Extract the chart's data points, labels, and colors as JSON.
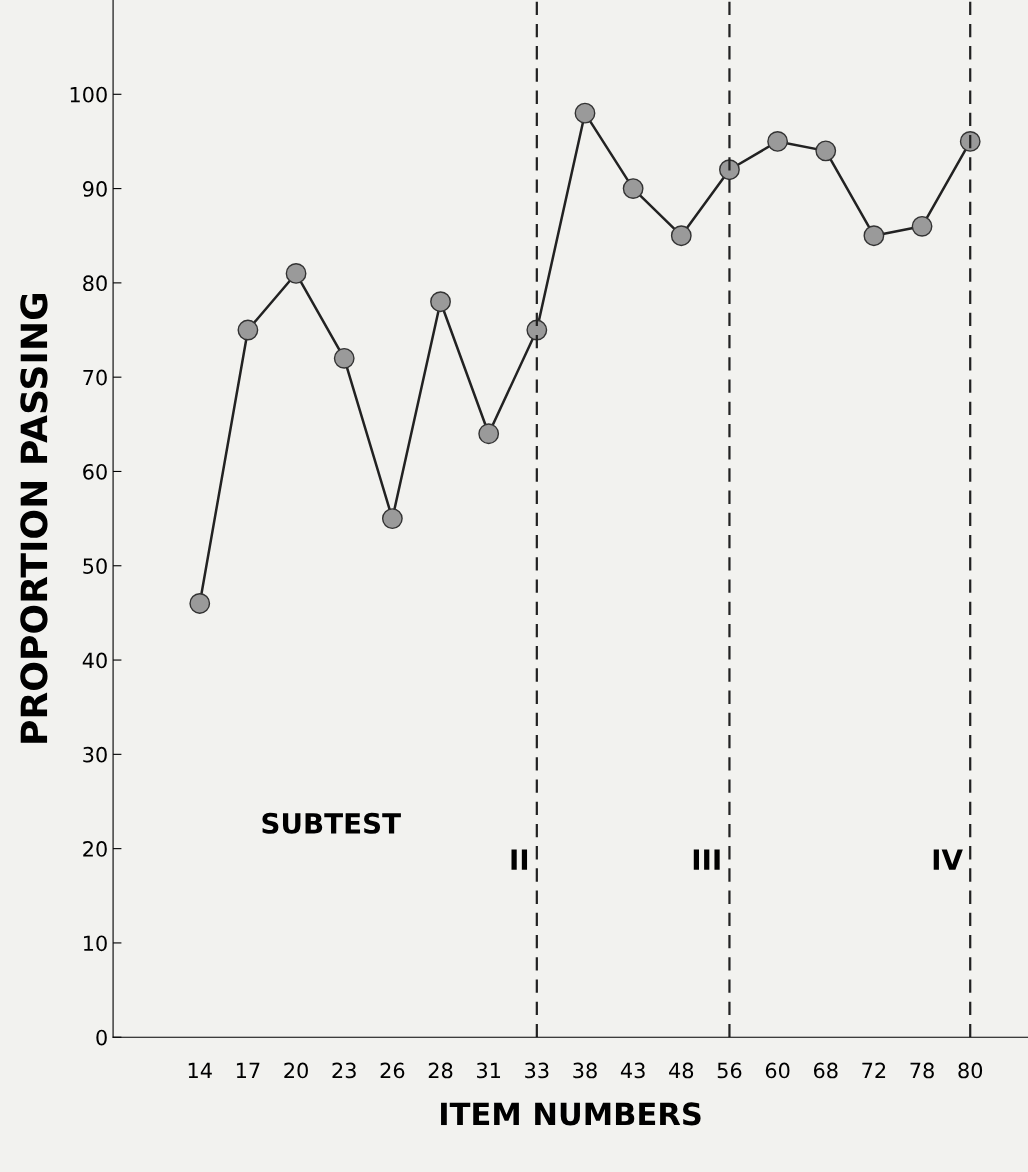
{
  "chart_data": {
    "type": "line",
    "xlabel": "ITEM NUMBERS",
    "ylabel": "PROPORTION PASSING",
    "categories": [
      "14",
      "17",
      "20",
      "23",
      "26",
      "28",
      "31",
      "33",
      "38",
      "43",
      "48",
      "56",
      "60",
      "68",
      "72",
      "78",
      "80"
    ],
    "series": [
      {
        "color": "#222222",
        "values": [
          46,
          75,
          81,
          72,
          55,
          78,
          64,
          75,
          98,
          90,
          85,
          92,
          95,
          94,
          85,
          86,
          95
        ]
      }
    ],
    "ylim": [
      0,
      110
    ],
    "yticks": [
      0,
      10,
      20,
      30,
      40,
      50,
      60,
      70,
      80,
      90,
      100
    ],
    "marker": "circle",
    "line_style": "solid",
    "grid": false,
    "legend": false,
    "ref_lines": [
      {
        "axis": "x",
        "value": "33",
        "label": "II",
        "line_style": "dashed",
        "color": "#222222"
      },
      {
        "axis": "x",
        "value": "56",
        "label": "III",
        "line_style": "dashed",
        "color": "#222222"
      },
      {
        "axis": "x",
        "value": "80",
        "label": "IV",
        "line_style": "dashed",
        "color": "#222222"
      }
    ],
    "annotations": [
      "SUBTEST"
    ]
  }
}
